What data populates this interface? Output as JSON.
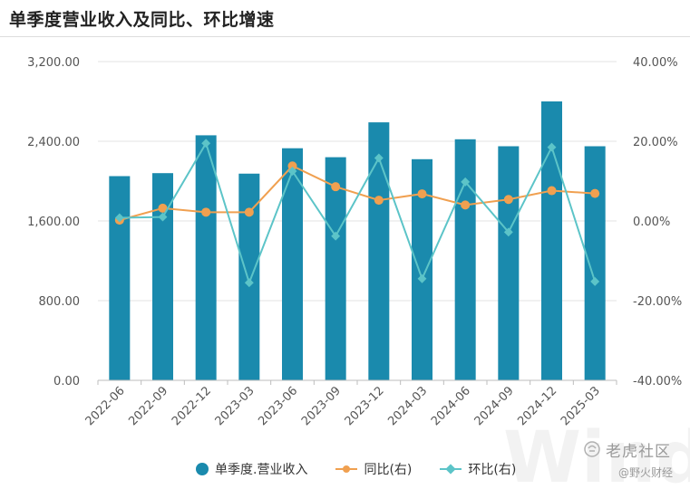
{
  "page": {
    "title": "单季度营业收入及同比、环比增速"
  },
  "chart_data": {
    "type": "bar",
    "categories": [
      "2022-06",
      "2022-09",
      "2022-12",
      "2023-03",
      "2023-06",
      "2023-09",
      "2023-12",
      "2024-03",
      "2024-06",
      "2024-09",
      "2024-12",
      "2025-03"
    ],
    "series": [
      {
        "name": "单季度.营业收入",
        "type": "bar",
        "axis": "left",
        "values": [
          2050,
          2080,
          2460,
          2075,
          2330,
          2240,
          2590,
          2220,
          2420,
          2350,
          2800,
          2350
        ],
        "color": "#1a8aad"
      },
      {
        "name": "同比(右)",
        "type": "line",
        "axis": "right",
        "values": [
          0.2,
          3.2,
          2.2,
          2.2,
          13.8,
          8.6,
          5.2,
          6.8,
          4.0,
          5.4,
          7.6,
          6.9
        ],
        "color": "#f0a050"
      },
      {
        "name": "环比(右)",
        "type": "line",
        "axis": "right",
        "values": [
          0.8,
          1.0,
          19.5,
          -15.5,
          12.5,
          -3.8,
          15.8,
          -14.5,
          9.8,
          -2.8,
          18.5,
          -15.2
        ],
        "color": "#5cc4c8"
      }
    ],
    "left_axis": {
      "min": 0,
      "max": 3200,
      "ticks": [
        "0.00",
        "800.00",
        "1,600.00",
        "2,400.00",
        "3,200.00"
      ]
    },
    "right_axis": {
      "min": -40,
      "max": 40,
      "ticks": [
        "-40.00%",
        "-20.00%",
        "0.00%",
        "20.00%",
        "40.00%"
      ]
    },
    "grid": true,
    "legend_position": "bottom"
  },
  "watermark": {
    "brand": "老虎社区",
    "handle": "@野火财经",
    "wind": "Wind"
  }
}
